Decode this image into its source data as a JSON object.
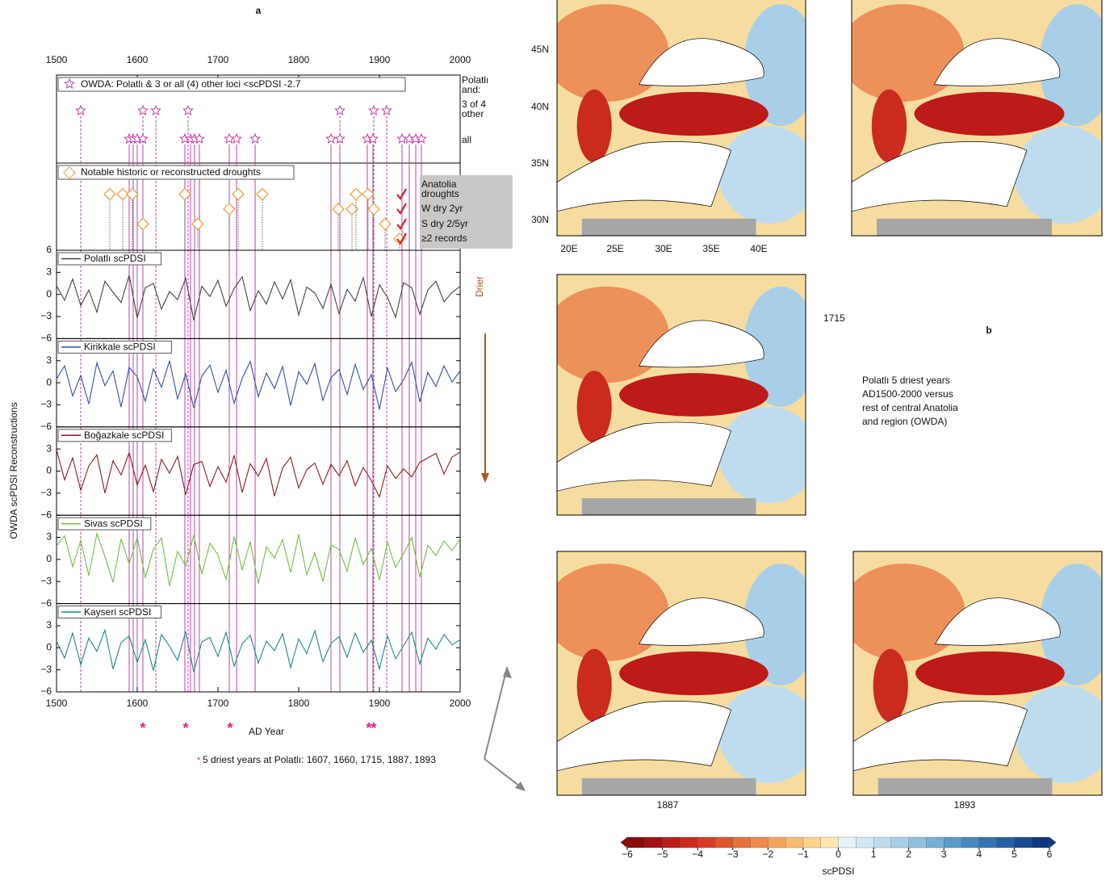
{
  "figure": {
    "panel_a": "a",
    "panel_b": "b",
    "y_label": "OWDA scPDSI Reconstructions",
    "x_label": "AD Year",
    "footnote_marker": "*",
    "footnote": "5 driest years at Polatlı: 1607, 1660, 1715, 1887, 1893",
    "driest_years": [
      1607,
      1660,
      1715,
      1887,
      1893
    ],
    "marker_color": "#e0208a",
    "drier": "Drier",
    "drier_color": "#b5541c",
    "caption": [
      "Polatlı 5 driest years",
      "AD1500-2000 versus",
      "rest of central Anatolia",
      "and region (OWDA)"
    ]
  },
  "maps": {
    "lat_labels": [
      "45N",
      "40N",
      "35N",
      "30N"
    ],
    "lon_labels": [
      "20E",
      "25E",
      "30E",
      "35E",
      "40E"
    ],
    "years": [
      "1715",
      "1887",
      "1893"
    ]
  },
  "chart_data": [
    {
      "type": "event",
      "xlim": [
        1500,
        2000
      ],
      "xticks": [
        1500,
        1600,
        1700,
        1800,
        1900,
        2000
      ],
      "star_legend": "OWDA: Polatlı & 3 or all (4) other loci <scPDSI -2.7",
      "star_color": "#c040a0",
      "row_labels": [
        "Polatlı",
        "and:",
        "3 of 4",
        "other",
        "all"
      ],
      "stars_3of4": [
        1530,
        1607,
        1623,
        1663,
        1851,
        1893,
        1909
      ],
      "stars_all": [
        1590,
        1595,
        1600,
        1607,
        1659,
        1666,
        1671,
        1677,
        1714,
        1723,
        1746,
        1840,
        1851,
        1885,
        1892,
        1928,
        1937,
        1945,
        1952
      ],
      "diamond_legend": "Notable historic or reconstructed droughts",
      "diamond_color": "#f0a040",
      "diamonds": {
        "x": [
          1566,
          1582,
          1594,
          1607,
          1659,
          1675,
          1714,
          1725,
          1755,
          1849,
          1866,
          1871,
          1886,
          1893,
          1907,
          1925
        ],
        "level": [
          1,
          1,
          1,
          3,
          1,
          3,
          2,
          1,
          1,
          2,
          2,
          1,
          1,
          2,
          3,
          4
        ]
      },
      "box_texts": [
        "Anatolia",
        "droughts",
        "W dry 2yr",
        "S dry 2/5yr",
        "≥2 records"
      ],
      "check_color": "#d02030"
    },
    {
      "type": "line",
      "name": "Polatlı scPDSI",
      "color": "#444444",
      "xlim": [
        1500,
        2000
      ],
      "ylim": [
        -6,
        6
      ],
      "yticks": [
        {
          "value": -6,
          "label": "−6"
        },
        {
          "value": -3,
          "label": "−3"
        },
        0,
        3,
        6
      ],
      "x": [
        1500,
        1510,
        1520,
        1530,
        1540,
        1550,
        1560,
        1570,
        1580,
        1590,
        1600,
        1610,
        1620,
        1630,
        1640,
        1650,
        1660,
        1670,
        1680,
        1690,
        1700,
        1710,
        1720,
        1730,
        1740,
        1750,
        1760,
        1770,
        1780,
        1790,
        1800,
        1810,
        1820,
        1830,
        1840,
        1850,
        1860,
        1870,
        1880,
        1890,
        1900,
        1910,
        1920,
        1930,
        1940,
        1950,
        1960,
        1970,
        1980,
        1990,
        2000
      ],
      "values": [
        1.2,
        -0.8,
        2.1,
        -1.5,
        0.6,
        -2.4,
        1.8,
        0.3,
        -1.1,
        2.6,
        -3.2,
        0.9,
        1.5,
        -2.0,
        0.4,
        -0.7,
        2.2,
        -3.5,
        1.1,
        -0.3,
        1.9,
        -1.6,
        0.8,
        2.4,
        -2.2,
        0.5,
        -1.3,
        1.7,
        -0.6,
        2.0,
        -2.8,
        1.0,
        0.2,
        -1.9,
        1.4,
        -2.6,
        0.7,
        -0.9,
        2.3,
        -3.0,
        1.3,
        -0.4,
        -3.1,
        1.6,
        0.9,
        -2.7,
        0.6,
        1.8,
        -1.0,
        0.3,
        1.1
      ]
    },
    {
      "type": "line",
      "name": "Kirikkale scPDSI",
      "color": "#3050b0",
      "xlim": [
        1500,
        2000
      ],
      "ylim": [
        -6,
        6
      ],
      "yticks": [
        {
          "value": -6,
          "label": "−6"
        },
        {
          "value": -3,
          "label": "−3"
        },
        0,
        3
      ],
      "x": [
        1500,
        1510,
        1520,
        1530,
        1540,
        1550,
        1560,
        1570,
        1580,
        1590,
        1600,
        1610,
        1620,
        1630,
        1640,
        1650,
        1660,
        1670,
        1680,
        1690,
        1700,
        1710,
        1720,
        1730,
        1740,
        1750,
        1760,
        1770,
        1780,
        1790,
        1800,
        1810,
        1820,
        1830,
        1840,
        1850,
        1860,
        1870,
        1880,
        1890,
        1900,
        1910,
        1920,
        1930,
        1940,
        1950,
        1960,
        1970,
        1980,
        1990,
        2000
      ],
      "values": [
        0.5,
        2.3,
        -1.8,
        1.0,
        -2.9,
        2.7,
        -0.4,
        1.6,
        -3.3,
        2.1,
        0.8,
        -2.5,
        1.9,
        -0.6,
        3.0,
        -2.2,
        1.2,
        -3.4,
        0.9,
        2.4,
        -1.3,
        1.7,
        -2.8,
        0.6,
        2.9,
        -1.9,
        1.3,
        -0.8,
        2.2,
        -3.1,
        1.5,
        -0.2,
        2.6,
        -2.4,
        0.7,
        1.8,
        -1.6,
        2.5,
        -0.9,
        1.1,
        -3.6,
        2.0,
        -1.2,
        0.4,
        2.8,
        -2.6,
        1.4,
        -0.5,
        2.3,
        0.1,
        1.6
      ]
    },
    {
      "type": "line",
      "name": "Boğazkale scPDSI",
      "color": "#8b1a1a",
      "xlim": [
        1500,
        2000
      ],
      "ylim": [
        -6,
        6
      ],
      "yticks": [
        {
          "value": -6,
          "label": "−6"
        },
        {
          "value": -3,
          "label": "−3"
        },
        0,
        3
      ],
      "x": [
        1500,
        1510,
        1520,
        1530,
        1540,
        1550,
        1560,
        1570,
        1580,
        1590,
        1600,
        1610,
        1620,
        1630,
        1640,
        1650,
        1660,
        1670,
        1680,
        1690,
        1700,
        1710,
        1720,
        1730,
        1740,
        1750,
        1760,
        1770,
        1780,
        1790,
        1800,
        1810,
        1820,
        1830,
        1840,
        1850,
        1860,
        1870,
        1880,
        1890,
        1900,
        1910,
        1920,
        1930,
        1940,
        1950,
        1960,
        1970,
        1980,
        1990,
        2000
      ],
      "values": [
        2.9,
        -1.2,
        1.8,
        -2.6,
        0.7,
        2.2,
        -3.0,
        1.4,
        -0.5,
        2.5,
        -1.9,
        0.8,
        -2.8,
        1.6,
        -0.3,
        2.0,
        -3.2,
        0.9,
        1.3,
        -2.1,
        0.6,
        -1.5,
        2.1,
        -2.9,
        1.0,
        -0.7,
        1.7,
        -3.4,
        0.4,
        1.9,
        -2.3,
        0.2,
        1.1,
        -1.8,
        0.9,
        -0.6,
        1.4,
        -2.0,
        0.5,
        -1.3,
        -3.5,
        0.7,
        -1.0,
        0.3,
        -0.8,
        1.2,
        1.8,
        2.4,
        -0.4,
        1.9,
        2.6
      ]
    },
    {
      "type": "line",
      "name": "Sivas scPDSI",
      "color": "#6cc040",
      "xlim": [
        1500,
        2000
      ],
      "ylim": [
        -6,
        6
      ],
      "yticks": [
        {
          "value": -6,
          "label": "−6"
        },
        {
          "value": -3,
          "label": "−3"
        },
        0,
        3
      ],
      "x": [
        1500,
        1510,
        1520,
        1530,
        1540,
        1550,
        1560,
        1570,
        1580,
        1590,
        1600,
        1610,
        1620,
        1630,
        1640,
        1650,
        1660,
        1670,
        1680,
        1690,
        1700,
        1710,
        1720,
        1730,
        1740,
        1750,
        1760,
        1770,
        1780,
        1790,
        1800,
        1810,
        1820,
        1830,
        1840,
        1850,
        1860,
        1870,
        1880,
        1890,
        1900,
        1910,
        1920,
        1930,
        1940,
        1950,
        1960,
        1970,
        1980,
        1990,
        2000
      ],
      "values": [
        1.8,
        3.2,
        -1.0,
        2.6,
        -2.2,
        3.5,
        0.4,
        -3.1,
        2.8,
        -0.6,
        3.0,
        -2.5,
        1.4,
        2.9,
        -3.6,
        1.1,
        -0.9,
        3.3,
        -2.0,
        2.2,
        0.6,
        -2.7,
        3.1,
        -1.4,
        2.4,
        -3.3,
        1.7,
        0.2,
        2.7,
        -1.8,
        3.4,
        -2.1,
        0.9,
        -3.0,
        2.0,
        1.3,
        -1.6,
        2.9,
        -0.7,
        1.5,
        -2.8,
        2.3,
        -1.1,
        0.8,
        3.0,
        -2.4,
        1.9,
        0.5,
        2.5,
        1.2,
        2.8
      ]
    },
    {
      "type": "line",
      "name": "Kayseri scPDSI",
      "color": "#1a8a8a",
      "xlim": [
        1500,
        2000
      ],
      "ylim": [
        -6,
        6
      ],
      "yticks": [
        {
          "value": -6,
          "label": "−6"
        },
        {
          "value": -3,
          "label": "−3"
        },
        0,
        3
      ],
      "xticks": [
        1500,
        1600,
        1700,
        1800,
        1900,
        2000
      ],
      "x": [
        1500,
        1510,
        1520,
        1530,
        1540,
        1550,
        1560,
        1570,
        1580,
        1590,
        1600,
        1610,
        1620,
        1630,
        1640,
        1650,
        1660,
        1670,
        1680,
        1690,
        1700,
        1710,
        1720,
        1730,
        1740,
        1750,
        1760,
        1770,
        1780,
        1790,
        1800,
        1810,
        1820,
        1830,
        1840,
        1850,
        1860,
        1870,
        1880,
        1890,
        1900,
        1910,
        1920,
        1930,
        1940,
        1950,
        1960,
        1970,
        1980,
        1990,
        2000
      ],
      "values": [
        0.9,
        -1.4,
        2.0,
        -2.3,
        1.3,
        -0.5,
        2.4,
        -2.9,
        0.7,
        1.6,
        -2.0,
        1.1,
        -3.1,
        1.8,
        0.2,
        -1.7,
        2.2,
        -3.3,
        0.8,
        1.4,
        -1.2,
        2.1,
        -2.5,
        0.5,
        1.7,
        -2.1,
        0.9,
        -0.4,
        1.9,
        -2.7,
        1.2,
        -0.8,
        2.3,
        -1.9,
        0.6,
        1.5,
        -1.3,
        2.0,
        -0.6,
        1.0,
        -2.9,
        1.6,
        -1.5,
        0.3,
        2.1,
        -2.2,
        1.3,
        -0.2,
        1.8,
        0.4,
        1.1
      ]
    },
    {
      "type": "colorbar",
      "label": "scPDSI",
      "xlim": [
        -6,
        6
      ],
      "xticks": [
        {
          "value": -6,
          "label": "−6"
        },
        {
          "value": -5,
          "label": "−5"
        },
        {
          "value": -4,
          "label": "−4"
        },
        {
          "value": -3,
          "label": "−3"
        },
        {
          "value": -2,
          "label": "−2"
        },
        {
          "value": -1,
          "label": "−1"
        },
        0,
        1,
        2,
        3,
        4,
        5,
        6
      ],
      "colors": [
        "#8b0a0a",
        "#a50f15",
        "#bd1a1a",
        "#cb2a1f",
        "#d73a26",
        "#e0552f",
        "#e8703b",
        "#ef8a49",
        "#f4a45a",
        "#f8bd70",
        "#fbd38b",
        "#fde7ab",
        "#e6f2fa",
        "#d3e8f5",
        "#bfdcef",
        "#a9cfe8",
        "#90bfdf",
        "#76aed5",
        "#5c9bca",
        "#4689bf",
        "#3474b2",
        "#2660a3",
        "#1a4b92",
        "#0f3680"
      ]
    }
  ]
}
